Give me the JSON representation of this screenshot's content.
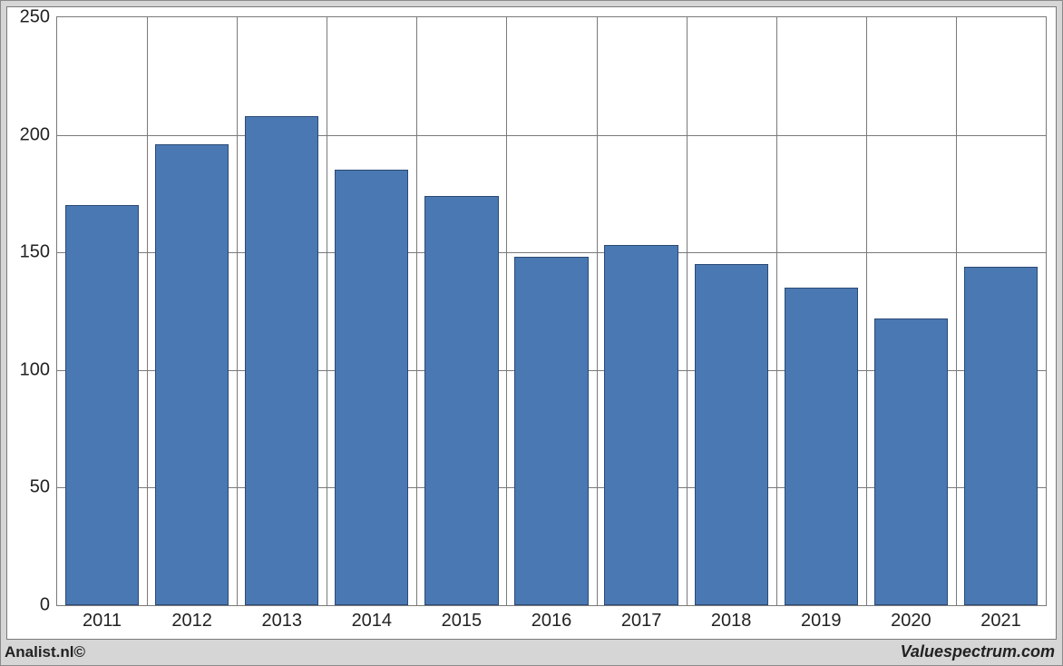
{
  "footer": {
    "left": "Analist.nl©",
    "right": "Valuespectrum.com"
  },
  "chart": {
    "type": "bar",
    "background_color": "#ffffff",
    "outer_background_color": "#d6d6d6",
    "border_color": "#7a7a7a",
    "grid_color": "#7a7a7a",
    "bar_fill_color": "#4a78b2",
    "bar_border_color": "#2b4a75",
    "label_color": "#222222",
    "ylim": [
      0,
      250
    ],
    "ytick_step": 50,
    "yticks": [
      0,
      50,
      100,
      150,
      200,
      250
    ],
    "categories": [
      "2011",
      "2012",
      "2013",
      "2014",
      "2015",
      "2016",
      "2017",
      "2018",
      "2019",
      "2020",
      "2021"
    ],
    "values": [
      170,
      196,
      208,
      185,
      174,
      148,
      153,
      145,
      135,
      122,
      144
    ],
    "bar_width_ratio": 0.82,
    "label_fontsize": 20,
    "footer_fontsize": 17
  }
}
